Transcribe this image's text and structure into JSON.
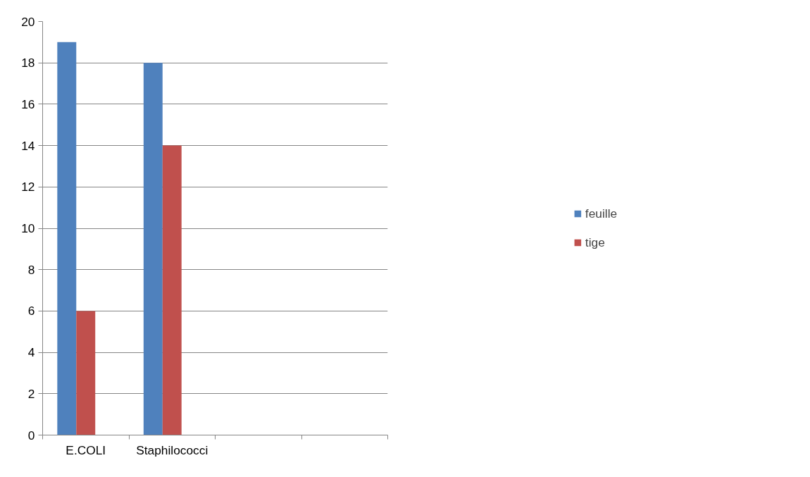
{
  "chart_data": {
    "type": "bar",
    "categories": [
      "E.COLI",
      "Staphilococci",
      null,
      null
    ],
    "series": [
      {
        "name": "feuille",
        "color": "#4f81bd",
        "values": [
          19,
          18,
          null,
          null
        ]
      },
      {
        "name": "tige",
        "color": "#c0504d",
        "values": [
          6,
          14,
          null,
          null
        ]
      }
    ],
    "ylim": [
      0,
      20
    ],
    "yticks": [
      0,
      2,
      4,
      6,
      8,
      10,
      12,
      14,
      16,
      18,
      20
    ],
    "grid": "y",
    "legend": "right"
  }
}
